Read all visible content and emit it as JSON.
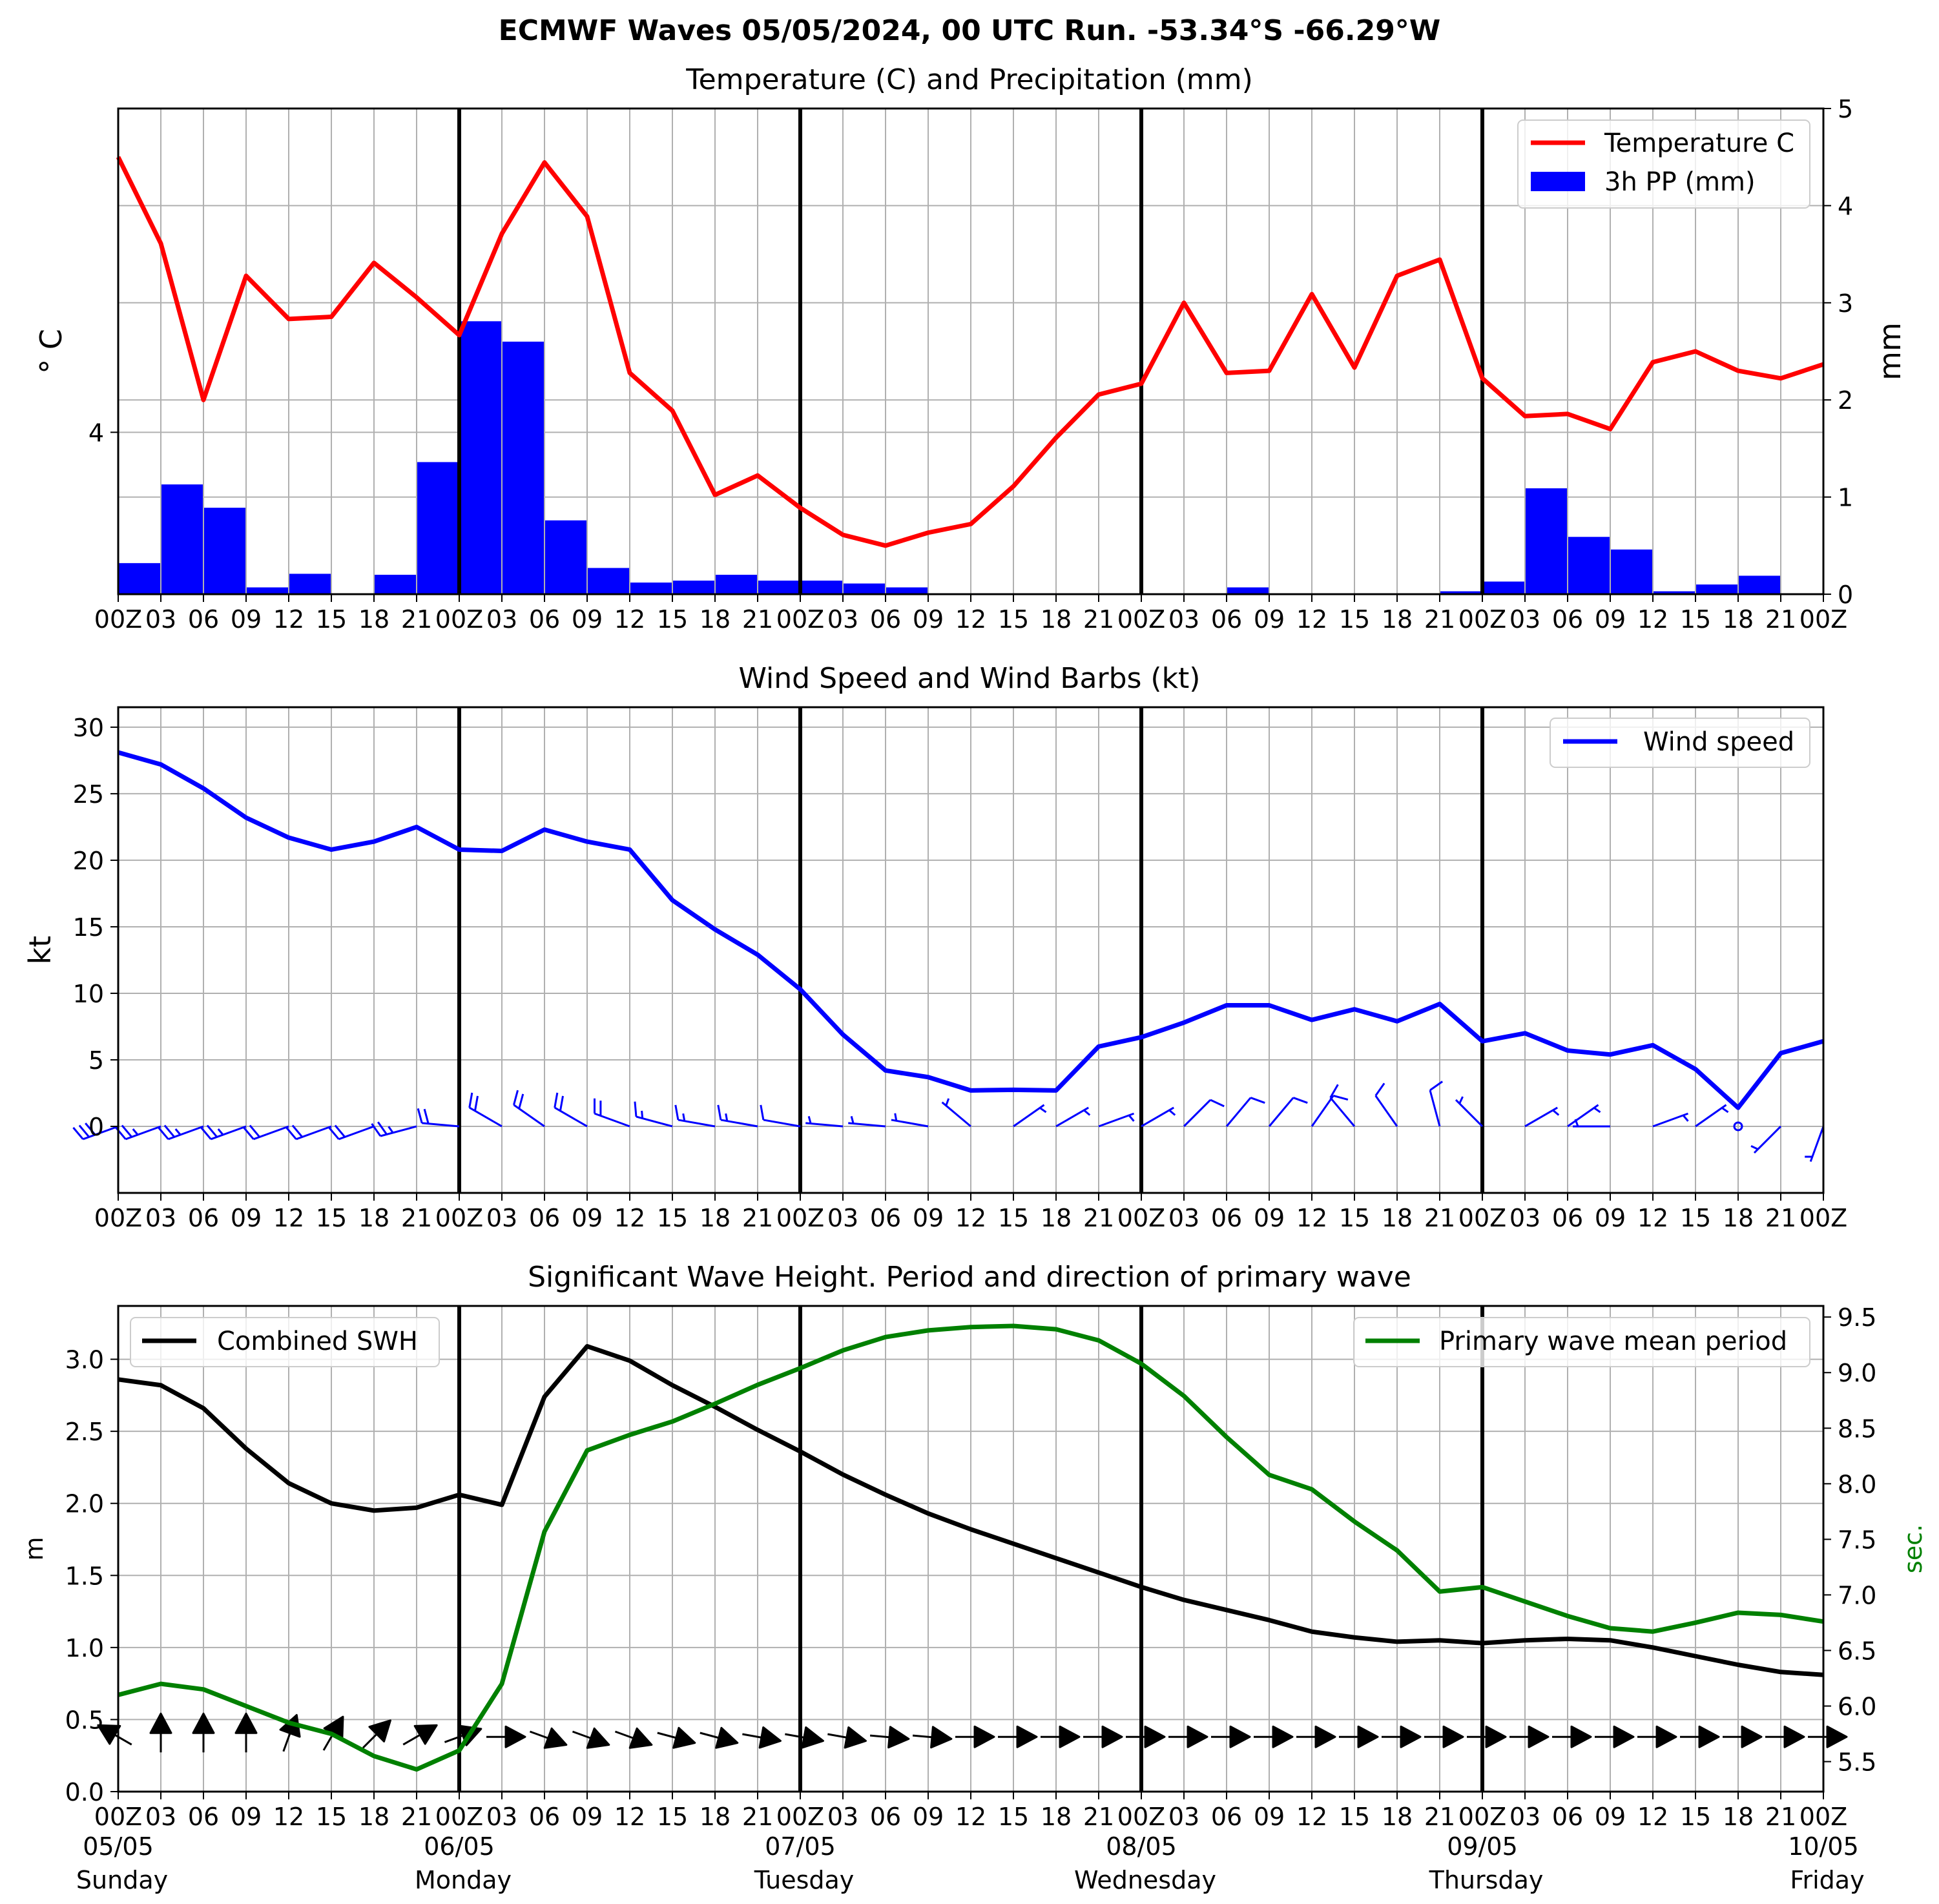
{
  "title": "ECMWF Waves 05/05/2024, 00 UTC Run. -53.34°S -66.29°W",
  "time_axis": {
    "start_date": "05/05",
    "end_date": "10/05",
    "hour_labels": [
      "00Z",
      "03",
      "06",
      "09",
      "12",
      "15",
      "18",
      "21",
      "00Z",
      "03",
      "06",
      "09",
      "12",
      "15",
      "18",
      "21",
      "00Z",
      "03",
      "06",
      "09",
      "12",
      "15",
      "18",
      "21",
      "00Z",
      "03",
      "06",
      "09",
      "12",
      "15",
      "18",
      "21",
      "00Z",
      "03",
      "06",
      "09",
      "12",
      "15",
      "18",
      "21",
      "00Z"
    ],
    "day_dates": [
      "05/05",
      "06/05",
      "07/05",
      "08/05",
      "09/05",
      "10/05"
    ],
    "day_names": [
      "Sunday",
      "Monday",
      "Tuesday",
      "Wednesday",
      "Thursday",
      "Friday"
    ]
  },
  "colors": {
    "temperature": "#ff0000",
    "precip": "#0000ff",
    "wind": "#0000ff",
    "swh": "#000000",
    "period": "#008000",
    "grid": "#b0b0b0"
  },
  "chart_data": [
    {
      "type": "line",
      "title": "Temperature (C) and Precipitation (mm)",
      "ylabel": "° C",
      "ylabel_right": "mm",
      "yticks_left": [
        "4"
      ],
      "ylim_left": [
        2.5,
        7.0
      ],
      "ylim_right": [
        0,
        5
      ],
      "yticks_right": [
        0,
        1,
        2,
        3,
        4,
        5
      ],
      "legend_position": "upper right",
      "grid": true,
      "series": [
        {
          "name": "Temperature C",
          "type": "line",
          "values": [
            6.55,
            5.75,
            4.3,
            5.45,
            5.05,
            5.07,
            5.57,
            5.25,
            4.9,
            5.84,
            6.5,
            6.0,
            4.55,
            4.2,
            3.42,
            3.6,
            3.3,
            3.05,
            2.95,
            3.07,
            3.15,
            3.5,
            3.95,
            4.35,
            4.45,
            5.2,
            4.55,
            4.57,
            5.28,
            4.6,
            5.45,
            5.6,
            4.5,
            4.15,
            4.17,
            4.03,
            4.65,
            4.75,
            4.57,
            4.5,
            4.63
          ]
        },
        {
          "name": "3h PP (mm)",
          "type": "bar",
          "values": [
            0.32,
            1.13,
            0.89,
            0.07,
            0.21,
            0.0,
            0.2,
            1.36,
            2.81,
            2.6,
            0.76,
            0.27,
            0.12,
            0.14,
            0.2,
            0.14,
            0.14,
            0.11,
            0.07,
            0.01,
            0.01,
            0.01,
            0.01,
            0.01,
            0.01,
            0.01,
            0.07,
            0.01,
            0.01,
            0.01,
            0.01,
            0.03,
            0.13,
            1.09,
            0.59,
            0.46,
            0.03,
            0.1,
            0.19,
            0.01
          ]
        }
      ]
    },
    {
      "type": "line",
      "title": "Wind Speed and Wind Barbs (kt)",
      "ylabel": "kt",
      "ylim": [
        -5,
        31.5
      ],
      "yticks": [
        0,
        5,
        10,
        15,
        20,
        25,
        30
      ],
      "legend_position": "upper right",
      "grid": true,
      "series": [
        {
          "name": "Wind speed",
          "values": [
            28.1,
            27.2,
            25.4,
            23.2,
            21.7,
            20.8,
            21.4,
            22.5,
            20.8,
            20.7,
            22.3,
            21.4,
            20.8,
            17.0,
            14.8,
            12.9,
            10.3,
            6.9,
            4.2,
            3.7,
            2.7,
            2.75,
            2.7,
            6.0,
            6.7,
            7.8,
            9.1,
            9.1,
            8.0,
            8.8,
            7.9,
            9.2,
            6.4,
            7.0,
            5.7,
            5.4,
            6.1,
            4.3,
            1.4,
            5.5,
            6.4
          ]
        }
      ],
      "barbs_direction_deg": [
        250,
        250,
        250,
        250,
        250,
        250,
        250,
        255,
        275,
        300,
        305,
        300,
        290,
        285,
        280,
        280,
        280,
        275,
        275,
        280,
        310,
        55,
        60,
        70,
        60,
        45,
        40,
        40,
        35,
        320,
        325,
        345,
        315,
        60,
        55,
        270,
        70,
        55,
        0,
        225,
        200
      ]
    },
    {
      "type": "line",
      "title": "Significant Wave Height. Period and direction of primary wave",
      "ylabel": "m",
      "ylabel_right": "sec.",
      "ylim": [
        0,
        3.37
      ],
      "yticks": [
        "0.0",
        "0.5",
        "1.0",
        "1.5",
        "2.0",
        "2.5",
        "3.0"
      ],
      "ylim_right": [
        5.23,
        9.6
      ],
      "yticks_right": [
        "5.5",
        "6.0",
        "6.5",
        "7.0",
        "7.5",
        "8.0",
        "8.5",
        "9.0",
        "9.5"
      ],
      "grid": true,
      "series": [
        {
          "name": "Combined SWH",
          "legend_position": "upper left",
          "values": [
            2.86,
            2.82,
            2.66,
            2.38,
            2.14,
            2.0,
            1.95,
            1.97,
            2.06,
            1.99,
            2.74,
            3.09,
            2.99,
            2.82,
            2.67,
            2.51,
            2.36,
            2.2,
            2.06,
            1.93,
            1.82,
            1.72,
            1.62,
            1.52,
            1.42,
            1.33,
            1.26,
            1.19,
            1.11,
            1.07,
            1.04,
            1.05,
            1.03,
            1.05,
            1.06,
            1.05,
            1.0,
            0.94,
            0.88,
            0.83,
            0.81
          ]
        },
        {
          "name": "Primary wave mean period",
          "legend_position": "upper right",
          "values": [
            6.1,
            6.2,
            6.15,
            6.0,
            5.85,
            5.75,
            5.55,
            5.43,
            5.6,
            6.2,
            7.57,
            8.3,
            8.44,
            8.56,
            8.72,
            8.89,
            9.04,
            9.2,
            9.32,
            9.38,
            9.41,
            9.42,
            9.39,
            9.29,
            9.08,
            8.79,
            8.42,
            8.08,
            7.95,
            7.66,
            7.4,
            7.03,
            7.07,
            6.94,
            6.81,
            6.7,
            6.67,
            6.75,
            6.84,
            6.82,
            6.76
          ]
        }
      ],
      "wave_direction_arrows_deg": [
        300,
        0,
        0,
        0,
        20,
        30,
        45,
        60,
        70,
        90,
        110,
        110,
        110,
        105,
        105,
        100,
        100,
        100,
        95,
        95,
        90,
        90,
        90,
        90,
        90,
        90,
        90,
        90,
        90,
        90,
        90,
        90,
        90,
        90,
        90,
        90,
        90,
        90,
        90,
        90,
        90
      ]
    }
  ]
}
